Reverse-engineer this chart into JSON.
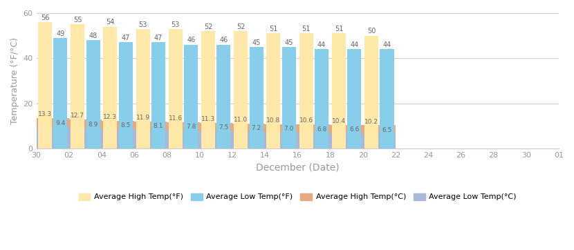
{
  "x_labels": [
    "30",
    "02",
    "04",
    "06",
    "08",
    "10",
    "12",
    "14",
    "16",
    "18",
    "20",
    "22",
    "24",
    "26",
    "28",
    "30",
    "01"
  ],
  "high_f": [
    56,
    55,
    54,
    53,
    53,
    52,
    52,
    51,
    51,
    51,
    50
  ],
  "low_f": [
    49,
    48,
    47,
    47,
    46,
    46,
    45,
    45,
    44,
    44,
    44
  ],
  "high_c": [
    13.3,
    12.7,
    12.3,
    11.9,
    11.6,
    11.3,
    11.0,
    10.8,
    10.6,
    10.4,
    10.2
  ],
  "low_c": [
    9.4,
    8.9,
    8.5,
    8.1,
    7.8,
    7.5,
    7.2,
    7.0,
    6.8,
    6.6,
    6.5
  ],
  "color_high_f": "#FFE8A8",
  "color_low_f": "#87CEEB",
  "color_high_c": "#E8A882",
  "color_low_c": "#A8B8D8",
  "ylim": [
    0,
    60
  ],
  "yticks": [
    0,
    20,
    40,
    60
  ],
  "ylabel": "Temperature (°F/°C)",
  "xlabel": "December (Date)",
  "legend_labels": [
    "Average High Temp(°F)",
    "Average Low Temp(°F)",
    "Average High Temp(°C)",
    "Average Low Temp(°C)"
  ],
  "background_color": "#ffffff",
  "grid_color": "#d0d0d0",
  "n_groups": 11,
  "n_ticks": 17
}
